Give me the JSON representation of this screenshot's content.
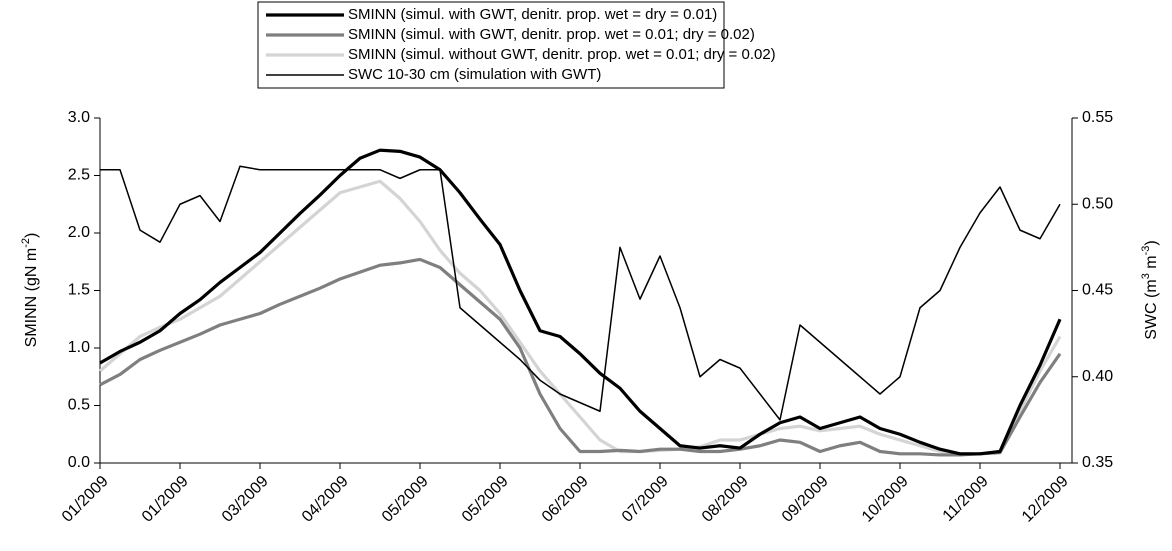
{
  "chart_data": {
    "type": "line",
    "y_label": [
      "SMINN  (gN m",
      "-2",
      ")"
    ],
    "y2_label": [
      "SWC (m",
      "3",
      " m",
      "-3",
      ")"
    ],
    "categories": [
      "01/2009",
      null,
      null,
      null,
      "01/2009",
      null,
      null,
      null,
      "03/2009",
      null,
      null,
      null,
      "04/2009",
      null,
      null,
      null,
      "05/2009",
      null,
      null,
      null,
      "05/2009",
      null,
      null,
      null,
      "06/2009",
      null,
      null,
      null,
      "07/2009",
      null,
      null,
      null,
      "08/2009",
      null,
      null,
      null,
      "09/2009",
      null,
      null,
      null,
      "10/2009",
      null,
      null,
      null,
      "11/2009",
      null,
      null,
      null,
      "12/2009"
    ],
    "ylim": [
      0,
      3.0
    ],
    "yticks": [
      {
        "value": 0,
        "label": "0.0"
      },
      0.5,
      {
        "value": 1,
        "label": "1.0"
      },
      1.5,
      {
        "value": 2,
        "label": "2.0"
      },
      2.5,
      {
        "value": 3,
        "label": "3.0"
      }
    ],
    "y2lim": [
      0.35,
      0.55
    ],
    "y2ticks": [
      0.35,
      {
        "value": 0.4,
        "label": "0.40"
      },
      0.45,
      {
        "value": 0.5,
        "label": "0.50"
      },
      0.55
    ],
    "series": [
      {
        "name": "SMINN  (simul. with GWT, denitr. prop. wet = dry = 0.01)",
        "color": "#000000",
        "line_width": 3.2,
        "values": [
          0.87,
          0.97,
          1.05,
          1.15,
          1.3,
          1.42,
          1.57,
          1.7,
          1.83,
          2.0,
          2.17,
          2.33,
          2.5,
          2.65,
          2.72,
          2.71,
          2.66,
          2.55,
          2.35,
          2.12,
          1.9,
          1.5,
          1.15,
          1.1,
          0.95,
          0.78,
          0.65,
          0.45,
          0.3,
          0.15,
          0.13,
          0.15,
          0.13,
          0.25,
          0.35,
          0.4,
          0.3,
          0.35,
          0.4,
          0.3,
          0.25,
          0.18,
          0.12,
          0.08,
          0.08,
          0.1,
          0.5,
          0.85,
          1.25
        ]
      },
      {
        "name": "SMINN  (simul. with GWT, denitr. prop. wet = 0.01; dry = 0.02)",
        "color": "#7f7f7f",
        "line_width": 3.2,
        "values": [
          0.68,
          0.77,
          0.9,
          0.98,
          1.05,
          1.12,
          1.2,
          1.25,
          1.3,
          1.38,
          1.45,
          1.52,
          1.6,
          1.66,
          1.72,
          1.74,
          1.77,
          1.7,
          1.55,
          1.4,
          1.25,
          1.0,
          0.6,
          0.3,
          0.1,
          0.1,
          0.11,
          0.1,
          0.12,
          0.12,
          0.1,
          0.1,
          0.12,
          0.15,
          0.2,
          0.18,
          0.1,
          0.15,
          0.18,
          0.1,
          0.08,
          0.08,
          0.07,
          0.07,
          0.08,
          0.09,
          0.4,
          0.7,
          0.95
        ]
      },
      {
        "name": "SMINN  (simul. without GWT, denitr. prop. wet = 0.01; dry = 0.02)",
        "color": "#d4d4d4",
        "line_width": 3.2,
        "values": [
          0.8,
          0.95,
          1.1,
          1.18,
          1.25,
          1.35,
          1.45,
          1.6,
          1.75,
          1.9,
          2.05,
          2.2,
          2.35,
          2.4,
          2.45,
          2.3,
          2.1,
          1.85,
          1.65,
          1.5,
          1.3,
          1.05,
          0.8,
          0.6,
          0.4,
          0.2,
          0.1,
          0.1,
          0.11,
          0.12,
          0.14,
          0.2,
          0.2,
          0.25,
          0.3,
          0.32,
          0.28,
          0.3,
          0.32,
          0.25,
          0.2,
          0.15,
          0.1,
          0.08,
          0.08,
          0.1,
          0.45,
          0.8,
          1.1
        ]
      },
      {
        "name": "SWC 10-30 cm (simulation with GWT)",
        "color": "#000000",
        "line_width": 1.5,
        "axis": "y2",
        "values": [
          0.52,
          0.52,
          0.485,
          0.478,
          0.5,
          0.505,
          0.49,
          0.522,
          0.52,
          0.52,
          0.52,
          0.52,
          0.52,
          0.52,
          0.52,
          0.515,
          0.52,
          0.52,
          0.44,
          0.43,
          0.42,
          0.41,
          0.398,
          0.39,
          0.385,
          0.38,
          0.475,
          0.445,
          0.47,
          0.44,
          0.4,
          0.41,
          0.405,
          0.39,
          0.375,
          0.43,
          0.42,
          0.41,
          0.4,
          0.39,
          0.4,
          0.44,
          0.45,
          0.475,
          0.495,
          0.51,
          0.485,
          0.48,
          0.5
        ]
      }
    ]
  }
}
